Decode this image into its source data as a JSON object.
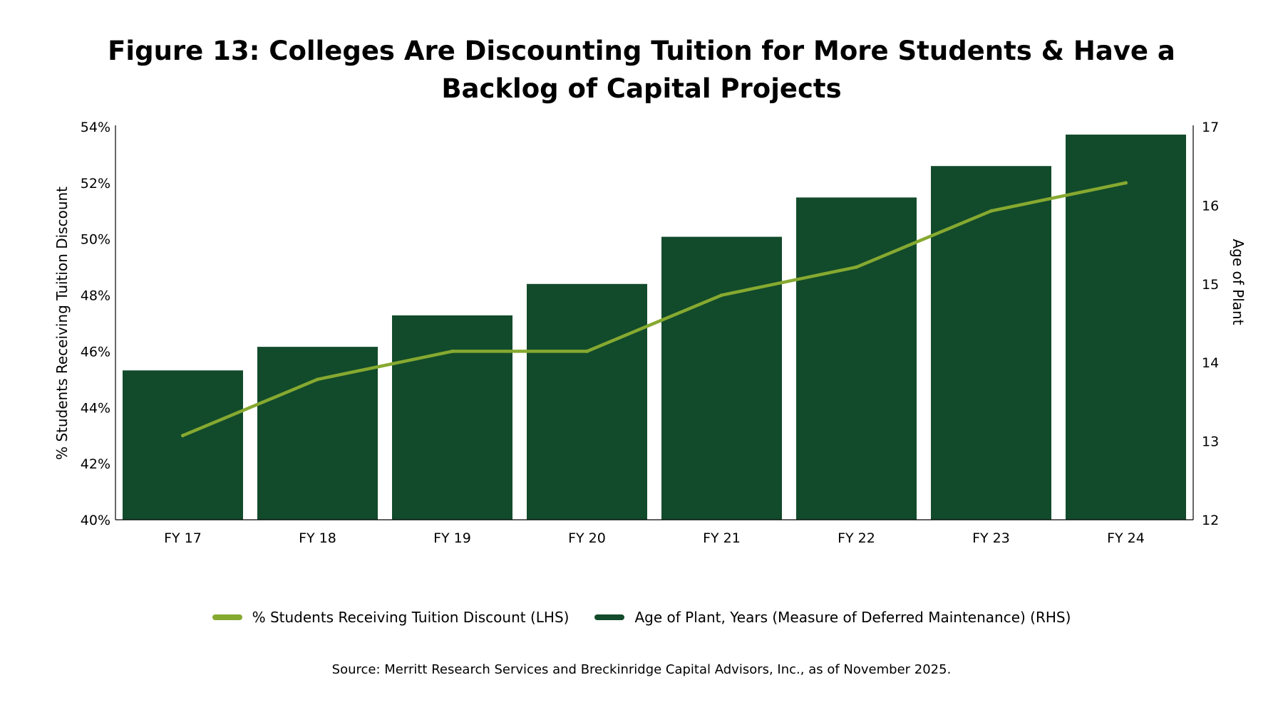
{
  "colors": {
    "bars": "#124b2b",
    "line": "#86a930",
    "axis": "#000000"
  },
  "chart_data": {
    "type": "bar",
    "title": "Figure 13: Colleges Are Discounting Tuition for More Students & Have a Backlog of Capital Projects",
    "categories": [
      "FY 17",
      "FY 18",
      "FY 19",
      "FY 20",
      "FY 21",
      "FY 22",
      "FY 23",
      "FY 24"
    ],
    "series": [
      {
        "name": "% Students Receiving Tuition Discount (LHS)",
        "type": "line",
        "axis": "left",
        "values": [
          43.0,
          45.0,
          46.0,
          46.0,
          48.0,
          49.0,
          51.0,
          52.0
        ]
      },
      {
        "name": "Age of Plant, Years (Measure of Deferred Maintenance) (RHS)",
        "type": "bar",
        "axis": "right",
        "values": [
          13.9,
          14.2,
          14.6,
          15.0,
          15.6,
          16.1,
          16.5,
          16.9
        ]
      }
    ],
    "y_left": {
      "label": "% Students Receiving Tuition Discount",
      "ylim": [
        40,
        54
      ],
      "ticks": [
        "40%",
        "42%",
        "44%",
        "46%",
        "48%",
        "50%",
        "52%",
        "54%"
      ]
    },
    "y_right": {
      "label": "Age of Plant",
      "ylim": [
        12,
        17
      ],
      "ticks": [
        "12",
        "13",
        "14",
        "15",
        "16",
        "17"
      ]
    },
    "grid": false,
    "legend_position": "bottom"
  },
  "source": "Source: Merritt Research Services and Breckinridge Capital Advisors, Inc., as of November 2025."
}
